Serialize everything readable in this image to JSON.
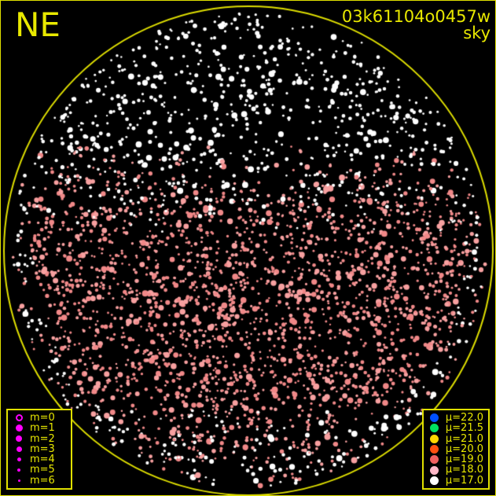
{
  "direction_label": "NE",
  "image_id": "03k61104o0457w",
  "image_type": "sky",
  "magnitude_legend": [
    {
      "label": "m=0",
      "hollow": true
    },
    {
      "label": "m=1"
    },
    {
      "label": "m=2"
    },
    {
      "label": "m=3"
    },
    {
      "label": "m=4"
    },
    {
      "label": "m=5"
    },
    {
      "label": "m=6"
    }
  ],
  "surface_brightness_legend": [
    {
      "label": "μ=22.0",
      "color": "#0050ff"
    },
    {
      "label": "μ=21.5",
      "color": "#00e060"
    },
    {
      "label": "μ=21.0",
      "color": "#ffd700"
    },
    {
      "label": "μ=20.0",
      "color": "#ff5010"
    },
    {
      "label": "μ=19.0",
      "color": "#f06060"
    },
    {
      "label": "μ=18.0",
      "color": "#ffb8c8"
    },
    {
      "label": "μ=17.0",
      "color": "#ffffff"
    }
  ],
  "colors": {
    "frame": "#e0e000",
    "text": "#e8e800",
    "legend_marker": "#ff00ff",
    "stars_upper": "#ffffff",
    "stars_lower": "#f08888"
  }
}
